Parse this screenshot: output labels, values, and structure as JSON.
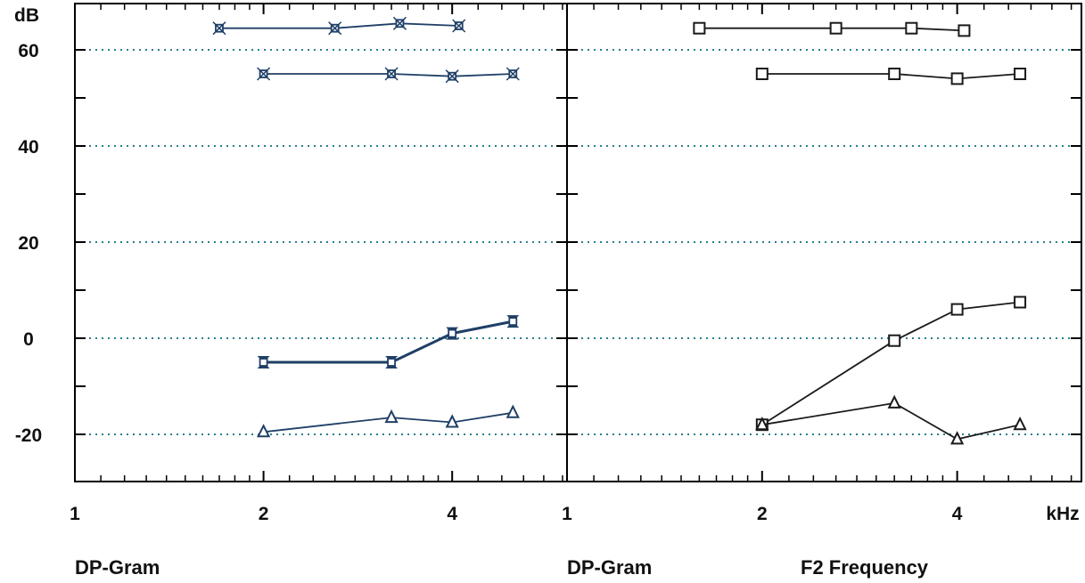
{
  "y_unit_label": "dB",
  "x_unit_label": "kHz",
  "footer": {
    "left": "DP-Gram",
    "middle": "DP-Gram",
    "right": "F2 Frequency"
  },
  "colors": {
    "left_series": "#1f3f66",
    "right_series": "#1a1a1a",
    "grid": "#2a7f8f",
    "frame": "#000000"
  },
  "chart_data": [
    {
      "type": "line",
      "panel": "left",
      "x_scale": "log",
      "xlim": [
        1,
        5.8
      ],
      "ylim": [
        -30,
        70
      ],
      "x_tick_labels": [
        "1",
        "2",
        "4"
      ],
      "y_tick_labels": [
        "60",
        "40",
        "20",
        "0",
        "-20"
      ],
      "grid": "dotted horizontal at -20, 0, 20, 40, 60",
      "series": [
        {
          "marker": "x-square",
          "x": [
            1.7,
            2.6,
            3.3,
            4.1
          ],
          "y": [
            64.5,
            64.5,
            65.5,
            65
          ]
        },
        {
          "marker": "x-square",
          "x": [
            2.0,
            3.2,
            4.0,
            5.0
          ],
          "y": [
            55,
            55,
            54.5,
            55
          ]
        },
        {
          "marker": "bow-square",
          "x": [
            2.0,
            3.2,
            4.0,
            5.0
          ],
          "y": [
            -5,
            -5,
            1,
            3.5
          ]
        },
        {
          "marker": "triangle",
          "x": [
            2.0,
            3.2,
            4.0,
            5.0
          ],
          "y": [
            -19.5,
            -16.5,
            -17.5,
            -15.5
          ]
        }
      ]
    },
    {
      "type": "line",
      "panel": "right",
      "x_scale": "log",
      "xlim": [
        1,
        6.2
      ],
      "ylim": [
        -30,
        70
      ],
      "x_tick_labels": [
        "1",
        "2",
        "4"
      ],
      "grid": "dotted horizontal at -20, 0, 20, 40, 60",
      "series": [
        {
          "marker": "square",
          "x": [
            1.6,
            2.6,
            3.4,
            4.1
          ],
          "y": [
            64.5,
            64.5,
            64.5,
            64
          ]
        },
        {
          "marker": "square",
          "x": [
            2.0,
            3.2,
            4.0,
            5.0
          ],
          "y": [
            55,
            55,
            54,
            55
          ]
        },
        {
          "marker": "square",
          "x": [
            2.0,
            3.2,
            4.0,
            5.0
          ],
          "y": [
            -18,
            -0.5,
            6,
            7.5
          ]
        },
        {
          "marker": "triangle",
          "x": [
            2.0,
            3.2,
            4.0,
            5.0
          ],
          "y": [
            -18,
            -13.5,
            -21,
            -18
          ]
        }
      ]
    }
  ]
}
